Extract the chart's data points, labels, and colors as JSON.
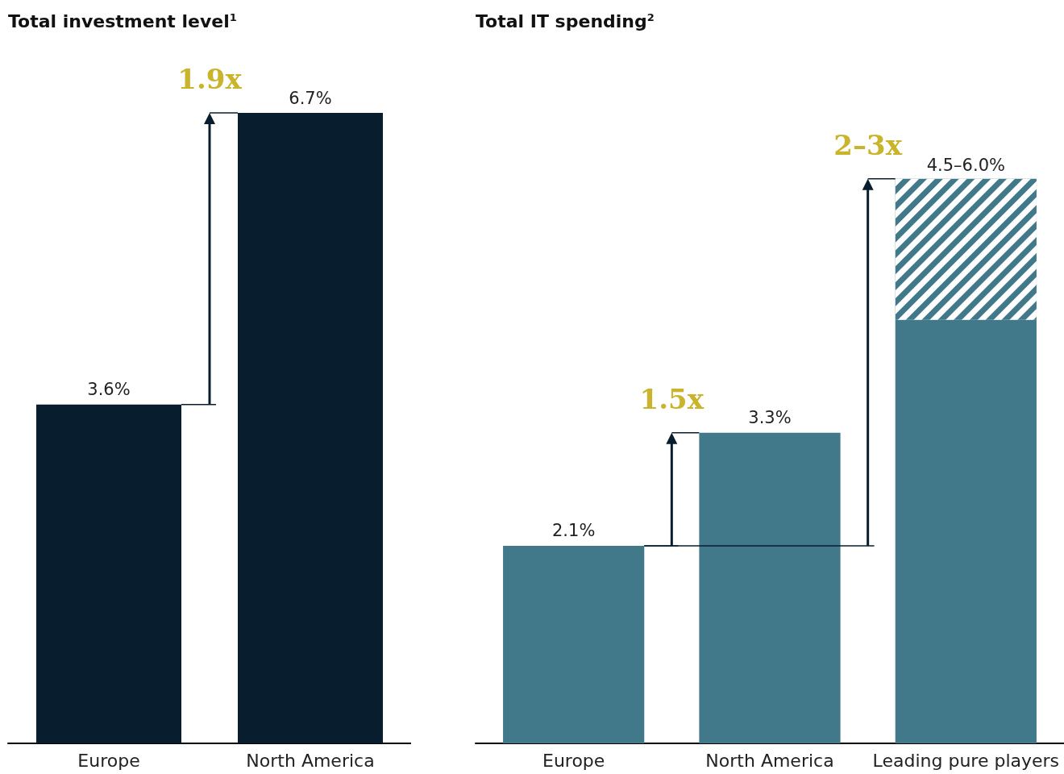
{
  "chart_data": [
    {
      "type": "bar",
      "title": "Total investment level$^{1}$",
      "categories": [
        "Europe",
        "North America"
      ],
      "series": [
        {
          "color": "#081e2e",
          "values": [
            3.6,
            6.7
          ],
          "value_labels": [
            "3.6%",
            "6.7%"
          ]
        }
      ],
      "annotations": [
        {
          "text": "1.9x",
          "x": "North America",
          "y": 6.7
        }
      ]
    },
    {
      "type": "bar",
      "title": "Total IT spending$^{2}$",
      "categories": [
        "Europe",
        "North America",
        "Leading pure players"
      ],
      "stacked": true,
      "series": [
        {
          "color": "#41788a",
          "values": [
            2.1,
            3.3,
            4.5
          ],
          "value_labels": [
            "2.1%",
            "3.3%",
            null
          ]
        },
        {
          "color": "#41788a",
          "values": [
            null,
            null,
            1.5
          ]
        }
      ],
      "annotations": [
        {
          "text": "1.5x",
          "x": "North America",
          "y": 3.3
        },
        {
          "text": "2–3x",
          "x": "Leading pure players",
          "y": 6.0
        },
        {
          "text": "4.5–6.0%",
          "x": "Leading pure players",
          "y": 6.0
        }
      ]
    }
  ]
}
